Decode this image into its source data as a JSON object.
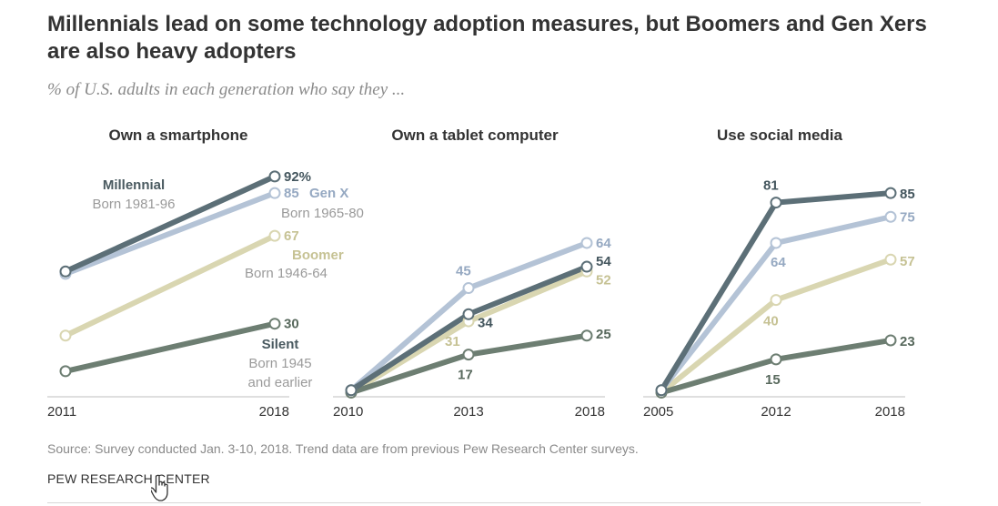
{
  "title": "Millennials lead on some technology adoption measures, but Boomers and Gen Xers are also heavy adopters",
  "subtitle": "% of U.S. adults in each generation who say they ...",
  "footer": {
    "source": "Source: Survey conducted Jan. 3-10, 2018. Trend data are from previous Pew Research Center surveys.",
    "brand": "PEW RESEARCH CENTER"
  },
  "colors": {
    "Millennial": "#5c6f77",
    "Gen X": "#b4c3d6",
    "Boomer": "#d9d6b1",
    "Silent": "#6d7e72"
  },
  "cursor_icon": "hand-pointer-icon",
  "chart_data": [
    {
      "type": "line",
      "title": "Own a smartphone",
      "x": [
        "2011",
        "2018"
      ],
      "series": [
        {
          "name": "Boomer",
          "values": [
            25,
            67
          ],
          "labels": [
            "",
            "67"
          ]
        },
        {
          "name": "Silent",
          "values": [
            10,
            30
          ],
          "labels": [
            "",
            "30"
          ]
        },
        {
          "name": "Gen X",
          "values": [
            51,
            85
          ],
          "labels": [
            "",
            "85"
          ]
        },
        {
          "name": "Millennial",
          "values": [
            52,
            92
          ],
          "labels": [
            "",
            "92%"
          ]
        }
      ],
      "ylim": [
        0,
        100
      ],
      "legend": [
        {
          "series": "Millennial",
          "name": "Millennial",
          "sub": "Born 1981-96"
        },
        {
          "series": "Gen X",
          "name": "Gen X",
          "sub": "Born 1965-80"
        },
        {
          "series": "Boomer",
          "name": "Boomer",
          "sub": "Born 1946-64"
        },
        {
          "series": "Silent",
          "name": "Silent",
          "sub": "Born 1945",
          "sub2": "and earlier"
        }
      ]
    },
    {
      "type": "line",
      "title": "Own a tablet computer",
      "x": [
        "2010",
        "2013",
        "2018"
      ],
      "series": [
        {
          "name": "Boomer",
          "values": [
            1,
            31,
            52
          ],
          "labels": [
            "",
            "31",
            "52"
          ]
        },
        {
          "name": "Silent",
          "values": [
            1,
            17,
            25
          ],
          "labels": [
            "",
            "17",
            "25"
          ]
        },
        {
          "name": "Gen X",
          "values": [
            2,
            45,
            64
          ],
          "labels": [
            "",
            "45",
            "64"
          ]
        },
        {
          "name": "Millennial",
          "values": [
            2,
            34,
            54
          ],
          "labels": [
            "",
            "34",
            "54"
          ]
        }
      ],
      "ylim": [
        0,
        100
      ]
    },
    {
      "type": "line",
      "title": "Use social media",
      "x": [
        "2005",
        "2012",
        "2018"
      ],
      "series": [
        {
          "name": "Boomer",
          "values": [
            1,
            40,
            57
          ],
          "labels": [
            "",
            "40",
            "57"
          ]
        },
        {
          "name": "Silent",
          "values": [
            1,
            15,
            23
          ],
          "labels": [
            "",
            "15",
            "23"
          ]
        },
        {
          "name": "Gen X",
          "values": [
            2,
            64,
            75
          ],
          "labels": [
            "",
            "64",
            "75"
          ]
        },
        {
          "name": "Millennial",
          "values": [
            2,
            81,
            85
          ],
          "labels": [
            "",
            "81",
            "85"
          ]
        }
      ],
      "ylim": [
        0,
        100
      ]
    }
  ]
}
